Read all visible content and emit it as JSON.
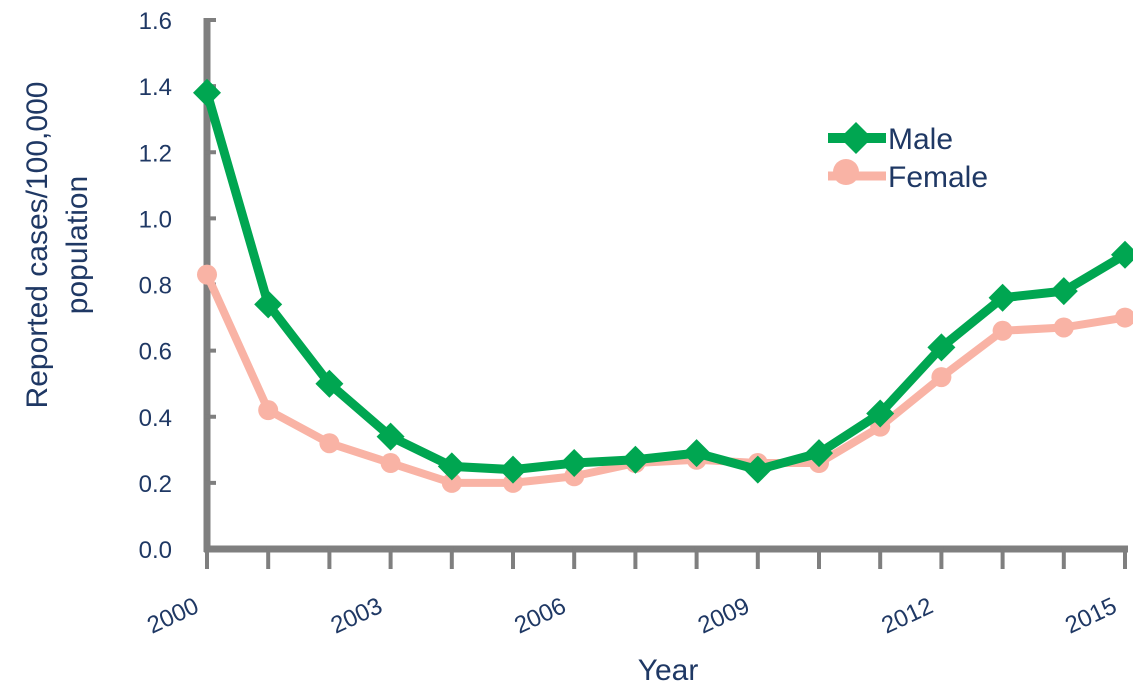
{
  "chart_data": {
    "type": "line",
    "title": "",
    "xlabel": "Year",
    "ylabel_lines": [
      "Reported cases/100,000",
      "population"
    ],
    "x": [
      2000,
      2001,
      2002,
      2003,
      2004,
      2005,
      2006,
      2007,
      2008,
      2009,
      2010,
      2011,
      2012,
      2013,
      2014,
      2015
    ],
    "x_tick_labels": [
      {
        "year": 2000,
        "label": "2000"
      },
      {
        "year": 2003,
        "label": "2003"
      },
      {
        "year": 2006,
        "label": "2006"
      },
      {
        "year": 2009,
        "label": "2009"
      },
      {
        "year": 2012,
        "label": "2012"
      },
      {
        "year": 2015,
        "label": "2015"
      }
    ],
    "ylim": [
      0.0,
      1.6
    ],
    "y_ticks": [
      {
        "value": 0.0,
        "label": "0.0"
      },
      {
        "value": 0.2,
        "label": "0.2"
      },
      {
        "value": 0.4,
        "label": "0.4"
      },
      {
        "value": 0.6,
        "label": "0.6"
      },
      {
        "value": 0.8,
        "label": "0.8"
      },
      {
        "value": 1.0,
        "label": "1.0"
      },
      {
        "value": 1.2,
        "label": "1.2"
      },
      {
        "value": 1.4,
        "label": "1.4"
      },
      {
        "value": 1.6,
        "label": "1.6"
      }
    ],
    "series": [
      {
        "name": "Male",
        "color": "#00a651",
        "marker": "diamond",
        "values": [
          1.38,
          0.74,
          0.5,
          0.34,
          0.25,
          0.24,
          0.26,
          0.27,
          0.29,
          0.24,
          0.29,
          0.41,
          0.61,
          0.76,
          0.78,
          0.89
        ]
      },
      {
        "name": "Female",
        "color": "#f9b3a5",
        "marker": "circle",
        "values": [
          0.83,
          0.42,
          0.32,
          0.26,
          0.2,
          0.2,
          0.22,
          0.26,
          0.27,
          0.26,
          0.26,
          0.37,
          0.52,
          0.66,
          0.67,
          0.7
        ]
      }
    ],
    "legend": {
      "position": "top-right",
      "items": [
        {
          "label": "Male",
          "color": "#00a651",
          "marker": "diamond"
        },
        {
          "label": "Female",
          "color": "#f9b3a5",
          "marker": "circle"
        }
      ]
    },
    "axis_color": "#7f7f7f",
    "grid": false
  }
}
